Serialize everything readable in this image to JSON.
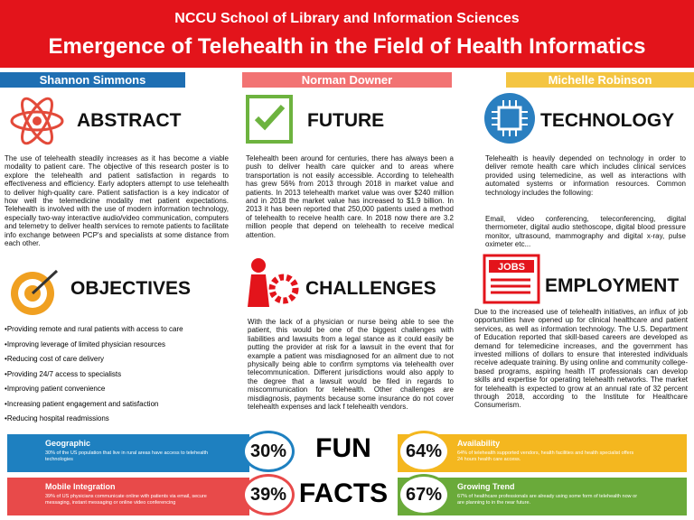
{
  "header": {
    "school": "NCCU School of Library and Information Sciences",
    "title": "Emergence of Telehealth in the Field of Health Informatics"
  },
  "authors": [
    "Shannon Simmons",
    "Norman Downer",
    "Michelle Robinson"
  ],
  "abstract": {
    "heading": "ABSTRACT",
    "text": "The use of telehealth steadily increases as it has become a viable modality to patient care. The objective of this research poster is to explore the telehealth and patient satisfaction in regards to effectiveness and efficiency. Early adopters attempt to use telehealth to deliver high-quality care. Patient satisfaction is a key indicator of how well the telemedicine modality met patient expectations. Telehealth is involved with the use of modern information technology, especially two-way interactive audio/video communication, computers and telemetry to deliver health services to remote patients to facilitate  info exchange between PCP's and specialists at some distance from each other."
  },
  "future": {
    "heading": "FUTURE",
    "text": "Telehealth been around for centuries, there has always been a push to deliver health care quicker and to areas where transportation is not easily accessible. According to telehealth has grew 56% from 2013 through 2018 in market value and patients. In 2013 telehealth market value was over $240 million and in 2018 the market value has increased to $1.9 billion. In 2013 it has been reported that 250,000 patients used a method of telehealth to receive health care. In 2018 now there are 3.2 million people that depend on telehealth to receive medical attention."
  },
  "technology": {
    "heading": "TECHNOLOGY",
    "text": "Telehealth is heavily depended on technology in order to deliver remote health care which includes clinical services provided using telemedicine, as well as interactions with automated systems or information resources. Common technology includes the following:",
    "list": "Email, video conferencing, teleconferencing, digital thermometer, digital audio stethoscope, digital blood pressure monitor, ultrasound, mammography and digital x-ray, pulse oximeter etc..."
  },
  "objectives": {
    "heading": "OBJECTIVES",
    "items": [
      "Providing remote and rural patients with access to care",
      "Improving leverage of limited physician resources",
      "Reducing cost of care delivery",
      "Providing 24/7 access to specialists",
      "Improving patient convenience",
      "Increasing patient engagement and satisfaction",
      "Reducing hospital readmissions"
    ]
  },
  "challenges": {
    "heading": "CHALLENGES",
    "text": "With the lack of a physician or nurse being able to see the patient, this would be one of the biggest challenges with liabilities and lawsuits from a legal stance as it could easily be putting the provider at risk for a lawsuit in the event that for example a patient was misdiagnosed for an ailment due to not physically being able to confirm symptoms via telehealth over telecommunication. Different jurisdictions would also apply to the degree that a lawsuit would be filed in regards to miscommunication for telehealth. Other challenges are misdiagnosis, payments because some insurance do not cover telehealth expenses and lack f telehealth vendors."
  },
  "employment": {
    "heading": "EMPLOYMENT",
    "icon": "JOBS",
    "text": "Due to the increased use of telehealth initiatives, an influx of job opportunities have opened up for clinical healthcare and patient services, as well as information technology. The U.S. Department of Education reported that skill-based careers are developed as demand for telemedicine increases, and the government has invested millions of dollars to ensure that interested individuals receive adequate training. By using online and community college-based programs, aspiring health IT professionals can develop skills and expertise for operating telehealth networks. The market for telehealth is expected to grow at an annual rate of 32 percent through 2018, according to the Institute for Healthcare Consumerism."
  },
  "fun_facts": {
    "title_top": "FUN",
    "title_bottom": "FACTS",
    "facts": [
      {
        "title": "Geographic",
        "percent": "30%",
        "text": "30% of the US population that live in rural areas have access to telehealth technologies"
      },
      {
        "title": "Mobile Integration",
        "percent": "39%",
        "text": "39% of US physicians communicate online with patients via email, secure messaging, instant messaging or online video conferencing"
      },
      {
        "title": "Availability",
        "percent": "64%",
        "text": "64% of telehealth supported vendors, health facilities and health specialist offers 24 hours health care access."
      },
      {
        "title": "Growing Trend",
        "percent": "67%",
        "text": "67% of healthcare professionals are already using some form of telehealth now or are planning to in the near future."
      }
    ]
  }
}
